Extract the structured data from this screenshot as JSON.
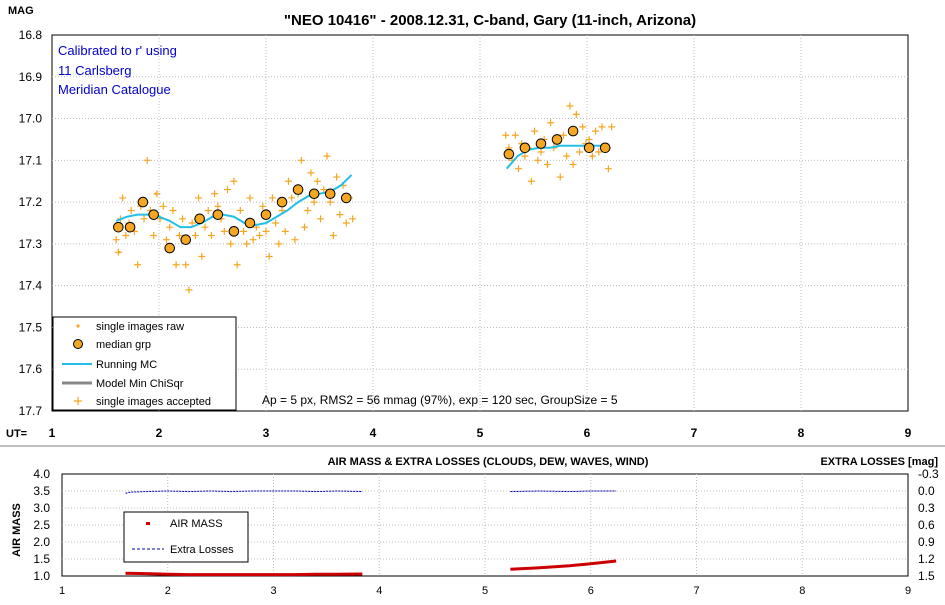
{
  "chart_data": [
    {
      "type": "scatter",
      "title": "\"NEO 10416\" - 2008.12.31, C-band, Gary (11-inch, Arizona)",
      "ylabel": "MAG",
      "xlabel": "UT=",
      "xlim": [
        1,
        9
      ],
      "ylim": [
        17.7,
        16.8
      ],
      "x_ticks": [
        "1",
        "2",
        "3",
        "4",
        "5",
        "6",
        "7",
        "8",
        "9"
      ],
      "y_ticks": [
        "16.8",
        "16.9",
        "17.0",
        "17.1",
        "17.2",
        "17.3",
        "17.4",
        "17.5",
        "17.6",
        "17.7"
      ],
      "y_reversed": true,
      "notes": [
        "Calibrated to r' using",
        "11 Carlsberg",
        "Meridian Catalogue"
      ],
      "stats_text": "Ap = 5 px, RMS2 = 56 mmag (97%), exp = 120 sec, GroupSize = 5",
      "legend_position": "bottom-left",
      "legend": [
        {
          "label": "single images raw",
          "symbol": "dot",
          "color": "#f5a623"
        },
        {
          "label": "median grp",
          "symbol": "circle",
          "color": "#f5a623"
        },
        {
          "label": "Running MC",
          "symbol": "line",
          "color": "#22c0e8"
        },
        {
          "label": "Model Min ChiSqr",
          "symbol": "line",
          "color": "#888888"
        },
        {
          "label": "single images accepted",
          "symbol": "plus",
          "color": "#f5a623"
        }
      ],
      "series": [
        {
          "name": "median grp",
          "x": [
            1.62,
            1.73,
            1.85,
            1.95,
            2.1,
            2.25,
            2.38,
            2.55,
            2.7,
            2.85,
            3.0,
            3.15,
            3.3,
            3.45,
            3.6,
            3.75,
            5.27,
            5.42,
            5.57,
            5.72,
            5.87,
            6.02,
            6.17
          ],
          "y": [
            17.26,
            17.26,
            17.2,
            17.23,
            17.31,
            17.29,
            17.24,
            17.23,
            17.27,
            17.25,
            17.23,
            17.2,
            17.17,
            17.18,
            17.18,
            17.19,
            17.085,
            17.07,
            17.06,
            17.05,
            17.03,
            17.07,
            17.07
          ]
        },
        {
          "name": "Running MC",
          "x": [
            1.6,
            1.7,
            1.8,
            1.9,
            2.0,
            2.1,
            2.2,
            2.3,
            2.4,
            2.5,
            2.6,
            2.7,
            2.8,
            2.9,
            3.0,
            3.1,
            3.2,
            3.3,
            3.4,
            3.5,
            3.6,
            3.7,
            3.8,
            5.25,
            5.35,
            5.45,
            5.55,
            5.65,
            5.75,
            5.85,
            5.95,
            6.05,
            6.15,
            6.22
          ],
          "y": [
            17.245,
            17.235,
            17.23,
            17.23,
            17.235,
            17.245,
            17.26,
            17.26,
            17.25,
            17.235,
            17.23,
            17.235,
            17.25,
            17.255,
            17.25,
            17.235,
            17.22,
            17.2,
            17.185,
            17.18,
            17.175,
            17.16,
            17.135,
            17.12,
            17.09,
            17.075,
            17.07,
            17.07,
            17.065,
            17.065,
            17.065,
            17.065,
            17.065,
            17.07
          ]
        },
        {
          "name": "single images accepted",
          "x": [
            1.6,
            1.62,
            1.64,
            1.66,
            1.69,
            1.72,
            1.74,
            1.77,
            1.8,
            1.83,
            1.86,
            1.89,
            1.92,
            1.95,
            1.98,
            2.01,
            2.04,
            2.07,
            2.1,
            2.13,
            2.16,
            2.19,
            2.22,
            2.25,
            2.28,
            2.31,
            2.34,
            2.37,
            2.4,
            2.43,
            2.46,
            2.49,
            2.52,
            2.55,
            2.58,
            2.61,
            2.64,
            2.67,
            2.7,
            2.73,
            2.76,
            2.79,
            2.82,
            2.85,
            2.88,
            2.91,
            2.94,
            2.97,
            3.0,
            3.03,
            3.06,
            3.09,
            3.12,
            3.15,
            3.18,
            3.21,
            3.24,
            3.27,
            3.3,
            3.33,
            3.36,
            3.39,
            3.42,
            3.45,
            3.48,
            3.51,
            3.54,
            3.57,
            3.6,
            3.63,
            3.66,
            3.69,
            3.72,
            3.75,
            3.78,
            3.81,
            5.24,
            5.27,
            5.3,
            5.33,
            5.36,
            5.39,
            5.42,
            5.45,
            5.48,
            5.51,
            5.54,
            5.57,
            5.6,
            5.63,
            5.66,
            5.69,
            5.72,
            5.75,
            5.78,
            5.81,
            5.84,
            5.87,
            5.9,
            5.93,
            5.96,
            5.99,
            6.02,
            6.05,
            6.08,
            6.11,
            6.14,
            6.17,
            6.2,
            6.23
          ],
          "y": [
            17.29,
            17.32,
            17.24,
            17.19,
            17.28,
            17.25,
            17.22,
            17.27,
            17.35,
            17.21,
            17.24,
            17.1,
            17.22,
            17.28,
            17.18,
            17.24,
            17.21,
            17.29,
            17.26,
            17.22,
            17.35,
            17.28,
            17.24,
            17.35,
            17.41,
            17.25,
            17.28,
            17.19,
            17.33,
            17.26,
            17.22,
            17.28,
            17.18,
            17.21,
            17.24,
            17.27,
            17.17,
            17.3,
            17.15,
            17.35,
            17.22,
            17.27,
            17.3,
            17.19,
            17.29,
            17.26,
            17.28,
            17.21,
            17.27,
            17.33,
            17.19,
            17.25,
            17.3,
            17.22,
            17.27,
            17.15,
            17.19,
            17.29,
            17.18,
            17.1,
            17.26,
            17.22,
            17.13,
            17.2,
            17.15,
            17.24,
            17.17,
            17.09,
            17.2,
            17.28,
            17.14,
            17.23,
            17.16,
            17.25,
            17.19,
            17.24,
            17.04,
            17.07,
            17.1,
            17.04,
            17.12,
            17.06,
            17.09,
            17.07,
            17.15,
            17.03,
            17.1,
            17.08,
            17.05,
            17.11,
            17.01,
            17.07,
            17.06,
            17.14,
            17.04,
            17.09,
            16.97,
            17.11,
            16.99,
            17.08,
            17.02,
            17.06,
            17.05,
            17.09,
            17.03,
            17.08,
            17.02,
            17.07,
            17.12,
            17.02
          ],
          "raw_x": [
            1.63,
            1.97,
            2.58,
            3.36,
            5.45,
            5.9,
            6.05
          ]
        }
      ]
    },
    {
      "type": "line",
      "title": "AIR MASS & EXTRA LOSSES (CLOUDS, DEW, WAVES, WIND)",
      "ylabel": "AIR MASS",
      "y2label": "EXTRA LOSSES [mag]",
      "xlim": [
        1,
        9
      ],
      "ylim": [
        1.0,
        4.0
      ],
      "y2lim": [
        1.5,
        -0.3
      ],
      "x_ticks": [
        "1",
        "2",
        "3",
        "4",
        "5",
        "6",
        "7",
        "8",
        "9"
      ],
      "y_ticks": [
        "4.0",
        "3.5",
        "3.0",
        "2.5",
        "2.0",
        "1.5",
        "1.0"
      ],
      "y2_ticks": [
        "-0.3",
        "0.0",
        "0.3",
        "0.6",
        "0.9",
        "1.2",
        "1.5"
      ],
      "legend_position": "left",
      "legend": [
        {
          "label": "AIR MASS",
          "symbol": "dot",
          "color": "#cc0000"
        },
        {
          "label": "Extra Losses",
          "symbol": "dash",
          "color": "#0000aa"
        }
      ],
      "series": [
        {
          "name": "AIR MASS",
          "x": [
            1.6,
            1.8,
            2.0,
            2.2,
            2.4,
            2.6,
            2.8,
            3.0,
            3.2,
            3.4,
            3.6,
            3.84,
            5.24,
            5.5,
            5.8,
            6.0,
            6.24
          ],
          "y": [
            1.08,
            1.07,
            1.05,
            1.04,
            1.04,
            1.04,
            1.04,
            1.04,
            1.04,
            1.05,
            1.05,
            1.06,
            1.2,
            1.24,
            1.3,
            1.36,
            1.44
          ]
        },
        {
          "name": "Extra Losses",
          "x": [
            1.6,
            1.65,
            1.8,
            2.0,
            2.2,
            2.4,
            2.6,
            2.8,
            3.0,
            3.2,
            3.4,
            3.6,
            3.84,
            5.24,
            5.5,
            5.8,
            6.0,
            6.24
          ],
          "y": [
            0.04,
            0.02,
            0.01,
            0.0,
            0.01,
            0.0,
            0.01,
            0.0,
            0.0,
            0.0,
            0.01,
            0.0,
            0.01,
            0.01,
            0.0,
            0.01,
            0.0,
            0.0
          ]
        }
      ]
    }
  ]
}
